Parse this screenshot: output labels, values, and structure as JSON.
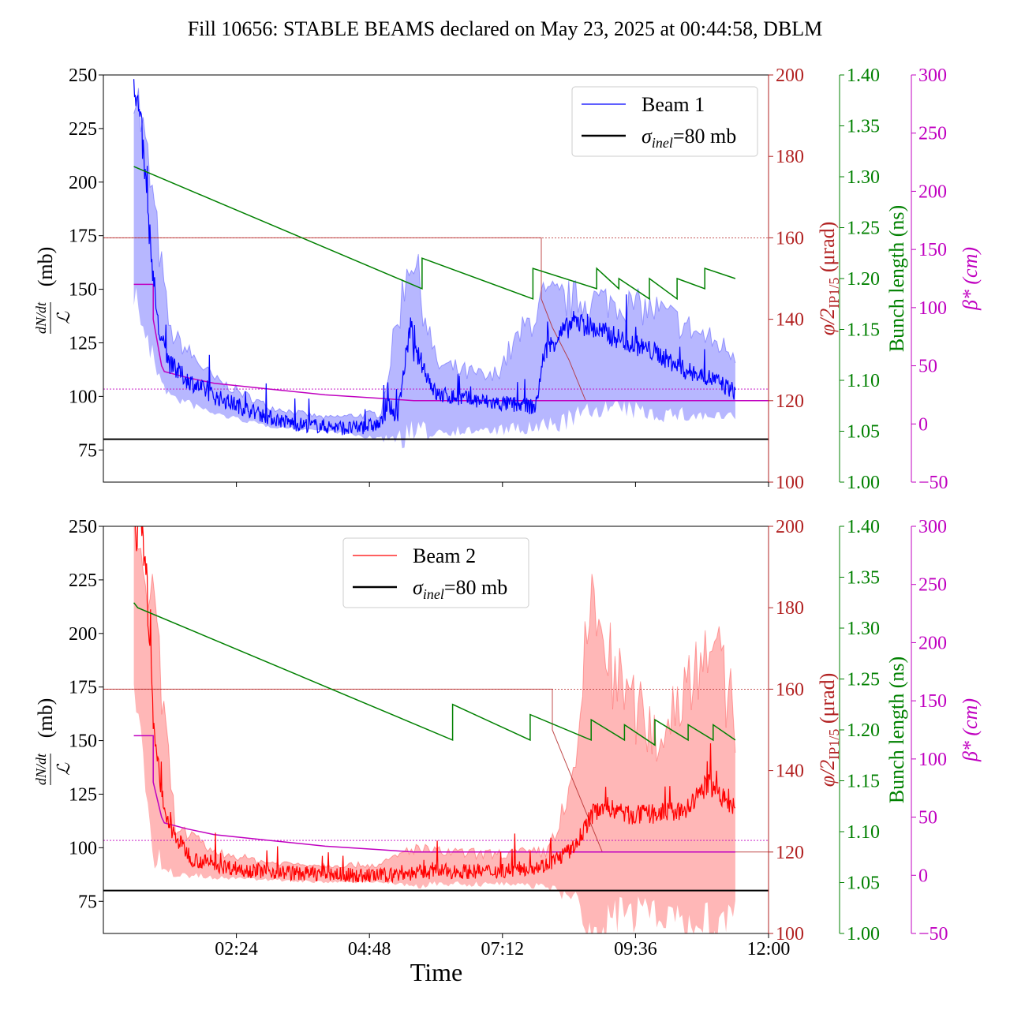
{
  "figure": {
    "title": "Fill 10656: STABLE BEAMS declared on May 23, 2025 at 00:44:58, DBLM",
    "xlabel": "Time"
  },
  "axes": {
    "left": {
      "label_numer": "dN/dt",
      "label_denom": "ℒ",
      "label_unit": "(mb)",
      "range": [
        60,
        250
      ],
      "ticks": [
        "75",
        "100",
        "125",
        "150",
        "175",
        "200",
        "225",
        "250"
      ],
      "tick_values": [
        75,
        100,
        125,
        150,
        175,
        200,
        225,
        250
      ]
    },
    "right1": {
      "label": "φ/2",
      "label_sub": "IP1/5",
      "label_unit": "(μrad)",
      "range": [
        100,
        200
      ],
      "ticks": [
        "100",
        "120",
        "140",
        "160",
        "180",
        "200"
      ],
      "tick_values": [
        100,
        120,
        140,
        160,
        180,
        200
      ]
    },
    "right2": {
      "label": "Bunch length (ns)",
      "range": [
        1.0,
        1.4
      ],
      "ticks": [
        "1.00",
        "1.05",
        "1.10",
        "1.15",
        "1.20",
        "1.25",
        "1.30",
        "1.35",
        "1.40"
      ],
      "tick_values": [
        1.0,
        1.05,
        1.1,
        1.15,
        1.2,
        1.25,
        1.3,
        1.35,
        1.4
      ]
    },
    "right3": {
      "label": "β*",
      "label_unit": "(cm)",
      "range": [
        -50,
        300
      ],
      "ticks": [
        "−50",
        "0",
        "50",
        "100",
        "150",
        "200",
        "250",
        "300"
      ],
      "tick_values": [
        -50,
        0,
        50,
        100,
        150,
        200,
        250,
        300
      ]
    },
    "x": {
      "range_hours": [
        0.0,
        12.0
      ],
      "ticks": [
        "02:24",
        "04:48",
        "07:12",
        "09:36",
        "12:00"
      ],
      "tick_values_hours": [
        2.4,
        4.8,
        7.2,
        9.6,
        12.0
      ]
    }
  },
  "colors": {
    "beam1": "#0000ff",
    "beam1_band": "#aaaaff",
    "beam2": "#ff0000",
    "beam2_band": "#ffaaaa",
    "crossing": "#b22222",
    "bunch": "#008000",
    "beta": "#c000c0",
    "sigma": "#000000"
  },
  "panels": [
    {
      "beam_label": "Beam 1",
      "sigma_label_main": "σ",
      "sigma_label_sub": "inel",
      "sigma_label_rest": "=80 mb",
      "legend_position": "upper right"
    },
    {
      "beam_label": "Beam 2",
      "sigma_label_main": "σ",
      "sigma_label_sub": "inel",
      "sigma_label_rest": "=80 mb",
      "legend_position": "upper center"
    }
  ],
  "chart_data": [
    {
      "type": "line",
      "panel": "top",
      "x_unit": "hours since 00:00",
      "series": [
        {
          "name": "Beam 1",
          "axis": "left",
          "x": [
            0.55,
            0.7,
            0.85,
            1.0,
            1.2,
            1.5,
            2.0,
            2.5,
            3.0,
            3.5,
            4.0,
            4.5,
            5.0,
            5.15,
            5.3,
            5.55,
            5.6,
            5.7,
            6.0,
            6.5,
            7.0,
            7.5,
            7.8,
            7.95,
            8.2,
            8.5,
            9.0,
            9.5,
            10.0,
            10.5,
            11.0,
            11.4
          ],
          "y": [
            250,
            220,
            170,
            130,
            115,
            108,
            100,
            95,
            90,
            87,
            86,
            85,
            87,
            96,
            90,
            135,
            120,
            118,
            101,
            99,
            97,
            96,
            95,
            120,
            128,
            135,
            130,
            125,
            120,
            112,
            108,
            102
          ]
        },
        {
          "name": "Beam 1 band upper",
          "axis": "left",
          "x": [
            0.55,
            0.85,
            1.2,
            2.0,
            3.0,
            4.0,
            5.0,
            5.55,
            6.0,
            7.0,
            7.95,
            9.0,
            10.0,
            11.4
          ],
          "y": [
            250,
            200,
            130,
            108,
            95,
            90,
            92,
            170,
            115,
            108,
            145,
            145,
            140,
            120
          ]
        },
        {
          "name": "Beam 1 band lower",
          "axis": "left",
          "x": [
            0.55,
            0.85,
            1.2,
            2.0,
            3.0,
            4.0,
            5.0,
            5.55,
            6.0,
            7.0,
            7.95,
            9.0,
            10.0,
            11.4
          ],
          "y": [
            150,
            120,
            100,
            92,
            86,
            84,
            80,
            82,
            84,
            84,
            85,
            95,
            92,
            90
          ]
        },
        {
          "name": "Bunch length",
          "axis": "right2",
          "x": [
            0.55,
            5.75,
            5.75,
            7.75,
            7.75,
            8.9,
            8.9,
            9.3,
            9.3,
            9.85,
            9.85,
            10.35,
            10.35,
            10.85,
            10.85,
            11.4
          ],
          "y": [
            1.31,
            1.19,
            1.22,
            1.18,
            1.21,
            1.19,
            1.21,
            1.19,
            1.2,
            1.18,
            1.2,
            1.18,
            1.2,
            1.19,
            1.21,
            1.2
          ]
        },
        {
          "name": "Crossing angle",
          "axis": "right1",
          "x": [
            0.0,
            7.9,
            7.9,
            8.1,
            8.4,
            8.7,
            12.0
          ],
          "y": [
            160,
            160,
            145,
            138,
            130,
            120,
            120
          ]
        },
        {
          "name": "Beta star",
          "axis": "right3",
          "x": [
            0.55,
            0.9,
            0.9,
            1.05,
            1.1,
            1.5,
            2.0,
            3.0,
            4.0,
            5.0,
            5.6,
            12.0
          ],
          "y": [
            120,
            120,
            90,
            50,
            45,
            40,
            35,
            30,
            25,
            22,
            20,
            20
          ]
        },
        {
          "name": "σinel=80 mb",
          "axis": "left",
          "x": [
            0.0,
            12.0
          ],
          "y": [
            80,
            80
          ]
        }
      ]
    },
    {
      "type": "line",
      "panel": "bottom",
      "x_unit": "hours since 00:00",
      "series": [
        {
          "name": "Beam 2",
          "axis": "left",
          "x": [
            0.55,
            0.75,
            0.9,
            1.1,
            1.3,
            1.6,
            2.0,
            2.5,
            3.0,
            3.5,
            4.0,
            4.5,
            5.0,
            5.5,
            6.0,
            6.5,
            7.0,
            7.5,
            8.0,
            8.5,
            8.8,
            9.0,
            9.5,
            10.0,
            10.5,
            10.9,
            11.1,
            11.4
          ],
          "y": [
            250,
            240,
            160,
            115,
            105,
            95,
            92,
            90,
            89,
            88,
            88,
            87,
            87,
            88,
            89,
            89,
            89,
            90,
            92,
            100,
            115,
            120,
            115,
            116,
            117,
            130,
            125,
            118
          ]
        },
        {
          "name": "Beam 2 band upper",
          "axis": "left",
          "x": [
            0.55,
            0.9,
            1.3,
            2.0,
            3.0,
            4.0,
            5.0,
            5.6,
            6.0,
            7.0,
            8.0,
            8.5,
            8.8,
            9.2,
            10.0,
            10.9,
            11.4
          ],
          "y": [
            250,
            210,
            110,
            98,
            93,
            92,
            92,
            100,
            98,
            97,
            98,
            130,
            220,
            180,
            150,
            200,
            160
          ]
        },
        {
          "name": "Beam 2 band lower",
          "axis": "left",
          "x": [
            0.55,
            0.9,
            1.3,
            2.0,
            3.0,
            4.0,
            5.0,
            5.6,
            6.0,
            7.0,
            8.0,
            8.5,
            8.8,
            9.2,
            10.0,
            10.9,
            11.4
          ],
          "y": [
            180,
            95,
            88,
            86,
            85,
            84,
            84,
            82,
            83,
            83,
            82,
            75,
            60,
            68,
            70,
            63,
            68
          ]
        },
        {
          "name": "Bunch length",
          "axis": "right2",
          "x": [
            0.55,
            0.62,
            6.3,
            6.3,
            7.7,
            7.7,
            8.8,
            8.8,
            9.4,
            9.4,
            9.95,
            9.95,
            10.55,
            10.55,
            11.0,
            11.0,
            11.4
          ],
          "y": [
            1.325,
            1.32,
            1.19,
            1.225,
            1.19,
            1.215,
            1.19,
            1.21,
            1.19,
            1.205,
            1.185,
            1.21,
            1.19,
            1.205,
            1.19,
            1.205,
            1.19
          ]
        },
        {
          "name": "Crossing angle",
          "axis": "right1",
          "x": [
            0.0,
            8.1,
            8.1,
            8.4,
            8.7,
            9.0,
            12.0
          ],
          "y": [
            160,
            160,
            150,
            140,
            130,
            120,
            120
          ]
        },
        {
          "name": "Beta star",
          "axis": "right3",
          "x": [
            0.55,
            0.9,
            0.9,
            1.05,
            1.1,
            1.5,
            2.0,
            3.0,
            4.0,
            5.0,
            5.6,
            8.8,
            8.8,
            11.4
          ],
          "y": [
            120,
            120,
            80,
            50,
            45,
            40,
            35,
            30,
            25,
            22,
            20,
            20,
            20,
            20
          ]
        },
        {
          "name": "σinel=80 mb",
          "axis": "left",
          "x": [
            0.0,
            12.0
          ],
          "y": [
            80,
            80
          ]
        }
      ]
    }
  ]
}
